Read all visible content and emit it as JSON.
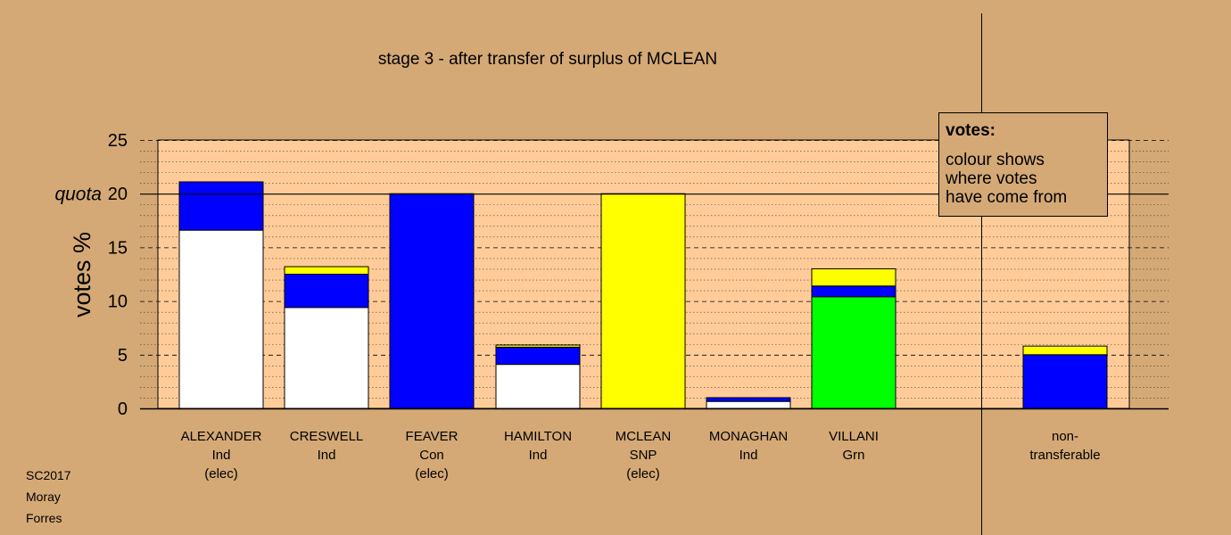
{
  "chart_data": {
    "type": "bar",
    "stacked": true,
    "title": "stage 3 - after transfer of surplus of MCLEAN",
    "ylabel": "votes %",
    "ylim": [
      0,
      25
    ],
    "yticks": [
      0,
      5,
      10,
      15,
      20,
      25
    ],
    "quota": {
      "label": "quota",
      "value": 20
    },
    "categories": [
      {
        "lines": [
          "ALEXANDER",
          "Ind",
          "(elec)"
        ]
      },
      {
        "lines": [
          "CRESWELL",
          "Ind"
        ]
      },
      {
        "lines": [
          "FEAVER",
          "Con",
          "(elec)"
        ]
      },
      {
        "lines": [
          "HAMILTON",
          "Ind"
        ]
      },
      {
        "lines": [
          "MCLEAN",
          "SNP",
          "(elec)"
        ]
      },
      {
        "lines": [
          "MONAGHAN",
          "Ind"
        ]
      },
      {
        "lines": [
          "VILLANI",
          "Grn"
        ]
      },
      {
        "lines": [
          "non-",
          "transferable"
        ]
      }
    ],
    "series": [
      {
        "color": "#ffffff",
        "values": [
          16.6,
          9.4,
          0,
          4.1,
          0,
          0.65,
          0,
          0
        ]
      },
      {
        "color": "#00ff00",
        "values": [
          0,
          0,
          0,
          0,
          0,
          0,
          10.4,
          0
        ]
      },
      {
        "color": "#0000ff",
        "values": [
          4.5,
          3.1,
          20.0,
          1.6,
          0,
          0.35,
          1.0,
          5.0
        ]
      },
      {
        "color": "#ffff00",
        "values": [
          0,
          0.7,
          0,
          0.2,
          20.0,
          0,
          1.6,
          0.8
        ]
      }
    ],
    "legend": {
      "heading": "votes:",
      "lines": [
        "colour shows",
        "where votes",
        "have come from"
      ],
      "position": "top-right"
    },
    "grid": true
  },
  "footer": {
    "line1": "SC2017",
    "line2": "Moray",
    "line3": "Forres"
  },
  "colors": {
    "background": "#d4a976",
    "plot_area": "#ffcc99",
    "legend_box": "#d4a976"
  }
}
